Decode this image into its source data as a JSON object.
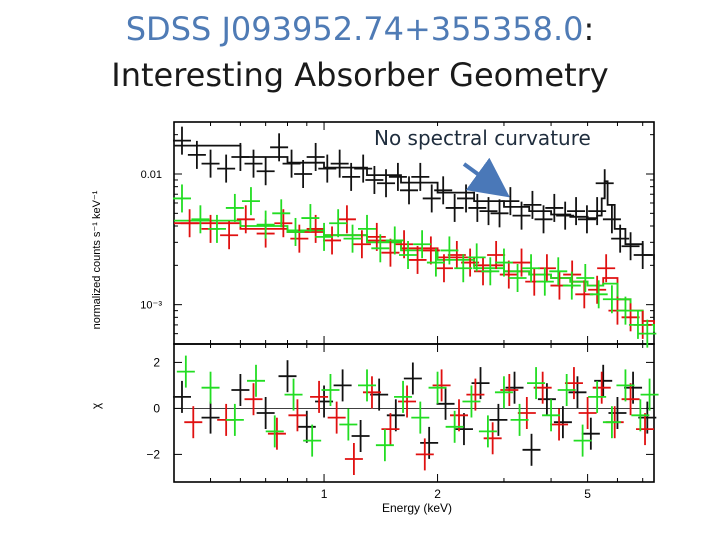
{
  "slide": {
    "title_object": "SDSS J093952.74+355358.0",
    "title_colon": ":",
    "title_line2": "Interesting Absorber Geometry",
    "annotation": "No spectral curvature"
  },
  "colors": {
    "accent": "#4f7bb5",
    "series_black": "#111111",
    "series_red": "#e01010",
    "series_green": "#22dd22",
    "arrow": "#4a78b8"
  },
  "chart_data": [
    {
      "type": "scatter",
      "panel": "spectrum",
      "xlabel": "Energy (keV)",
      "ylabel": "normalized counts s⁻¹ keV⁻¹",
      "x_scale": "log",
      "y_scale": "log",
      "xlim": [
        0.4,
        7.5
      ],
      "ylim": [
        0.0005,
        0.025
      ],
      "yticks": [
        {
          "value": 0.01,
          "label": "0.01"
        },
        {
          "value": 0.001,
          "label": "10⁻³"
        }
      ],
      "series": [
        {
          "color": "black",
          "points": [
            [
              0.42,
              0.018
            ],
            [
              0.46,
              0.014
            ],
            [
              0.5,
              0.012
            ],
            [
              0.55,
              0.011
            ],
            [
              0.6,
              0.0135
            ],
            [
              0.65,
              0.012
            ],
            [
              0.7,
              0.0105
            ],
            [
              0.76,
              0.016
            ],
            [
              0.82,
              0.012
            ],
            [
              0.88,
              0.01
            ],
            [
              0.95,
              0.0135
            ],
            [
              1.02,
              0.011
            ],
            [
              1.1,
              0.012
            ],
            [
              1.18,
              0.0095
            ],
            [
              1.27,
              0.011
            ],
            [
              1.36,
              0.009
            ],
            [
              1.46,
              0.0085
            ],
            [
              1.57,
              0.0095
            ],
            [
              1.68,
              0.0075
            ],
            [
              1.8,
              0.0095
            ],
            [
              1.93,
              0.0065
            ],
            [
              2.07,
              0.0075
            ],
            [
              2.22,
              0.0055
            ],
            [
              2.38,
              0.0065
            ],
            [
              2.55,
              0.0055
            ],
            [
              2.73,
              0.0052
            ],
            [
              2.92,
              0.005
            ],
            [
              3.12,
              0.0062
            ],
            [
              3.34,
              0.0048
            ],
            [
              3.57,
              0.0058
            ],
            [
              3.82,
              0.0045
            ],
            [
              4.08,
              0.0055
            ],
            [
              4.36,
              0.0048
            ],
            [
              4.66,
              0.0052
            ],
            [
              4.98,
              0.0045
            ],
            [
              5.3,
              0.0052
            ],
            [
              5.55,
              0.0085
            ],
            [
              5.8,
              0.0045
            ],
            [
              6.1,
              0.0032
            ],
            [
              6.5,
              0.0028
            ],
            [
              7.0,
              0.0024
            ]
          ],
          "model": [
            [
              0.4,
              0.0165
            ],
            [
              0.6,
              0.0135
            ],
            [
              0.8,
              0.0122
            ],
            [
              1.0,
              0.0112
            ],
            [
              1.3,
              0.0098
            ],
            [
              1.6,
              0.0086
            ],
            [
              2.0,
              0.0072
            ],
            [
              2.5,
              0.0062
            ],
            [
              3.0,
              0.0056
            ],
            [
              3.5,
              0.0052
            ],
            [
              4.0,
              0.0049
            ],
            [
              4.5,
              0.0047
            ],
            [
              5.0,
              0.0046
            ],
            [
              5.3,
              0.0048
            ],
            [
              5.45,
              0.0065
            ],
            [
              5.55,
              0.0088
            ],
            [
              5.65,
              0.0058
            ],
            [
              5.9,
              0.0038
            ],
            [
              6.3,
              0.0029
            ],
            [
              7.0,
              0.0024
            ],
            [
              7.5,
              0.0022
            ]
          ]
        },
        {
          "color": "red",
          "points": [
            [
              0.44,
              0.0042
            ],
            [
              0.5,
              0.0038
            ],
            [
              0.56,
              0.0034
            ],
            [
              0.62,
              0.0045
            ],
            [
              0.7,
              0.0035
            ],
            [
              0.78,
              0.0042
            ],
            [
              0.86,
              0.0032
            ],
            [
              0.95,
              0.0038
            ],
            [
              1.05,
              0.0031
            ],
            [
              1.15,
              0.0045
            ],
            [
              1.26,
              0.0029
            ],
            [
              1.38,
              0.0033
            ],
            [
              1.5,
              0.0025
            ],
            [
              1.63,
              0.0029
            ],
            [
              1.77,
              0.0022
            ],
            [
              1.92,
              0.0026
            ],
            [
              2.08,
              0.0019
            ],
            [
              2.25,
              0.0024
            ],
            [
              2.44,
              0.0021
            ],
            [
              2.64,
              0.0018
            ],
            [
              2.86,
              0.0024
            ],
            [
              3.09,
              0.0017
            ],
            [
              3.34,
              0.0021
            ],
            [
              3.61,
              0.0015
            ],
            [
              3.9,
              0.0019
            ],
            [
              4.21,
              0.0014
            ],
            [
              4.55,
              0.0017
            ],
            [
              4.9,
              0.0012
            ],
            [
              5.3,
              0.0013
            ],
            [
              5.6,
              0.0019
            ],
            [
              6.0,
              0.0009
            ],
            [
              6.5,
              0.0008
            ],
            [
              7.0,
              0.0007
            ]
          ],
          "model": [
            [
              0.4,
              0.0042
            ],
            [
              0.6,
              0.0038
            ],
            [
              0.8,
              0.0036
            ],
            [
              1.0,
              0.0034
            ],
            [
              1.3,
              0.0031
            ],
            [
              1.6,
              0.0027
            ],
            [
              2.0,
              0.0023
            ],
            [
              2.5,
              0.002
            ],
            [
              3.0,
              0.0018
            ],
            [
              3.5,
              0.0017
            ],
            [
              4.0,
              0.0016
            ],
            [
              4.5,
              0.0015
            ],
            [
              5.0,
              0.0014
            ],
            [
              5.5,
              0.0016
            ],
            [
              6.0,
              0.0011
            ],
            [
              6.5,
              0.0009
            ],
            [
              7.0,
              0.00075
            ],
            [
              7.5,
              0.0007
            ]
          ]
        },
        {
          "color": "green",
          "points": [
            [
              0.42,
              0.0065
            ],
            [
              0.47,
              0.0045
            ],
            [
              0.52,
              0.0038
            ],
            [
              0.58,
              0.0055
            ],
            [
              0.64,
              0.0062
            ],
            [
              0.7,
              0.0041
            ],
            [
              0.77,
              0.005
            ],
            [
              0.84,
              0.0036
            ],
            [
              0.92,
              0.0046
            ],
            [
              1.0,
              0.0033
            ],
            [
              1.09,
              0.0042
            ],
            [
              1.19,
              0.0032
            ],
            [
              1.3,
              0.0038
            ],
            [
              1.41,
              0.0027
            ],
            [
              1.54,
              0.0031
            ],
            [
              1.67,
              0.0024
            ],
            [
              1.82,
              0.0029
            ],
            [
              1.98,
              0.0021
            ],
            [
              2.15,
              0.0026
            ],
            [
              2.34,
              0.0019
            ],
            [
              2.54,
              0.0023
            ],
            [
              2.76,
              0.0018
            ],
            [
              3.0,
              0.0021
            ],
            [
              3.26,
              0.0016
            ],
            [
              3.54,
              0.0019
            ],
            [
              3.85,
              0.0015
            ],
            [
              4.18,
              0.0018
            ],
            [
              4.54,
              0.0014
            ],
            [
              4.93,
              0.0016
            ],
            [
              5.35,
              0.0012
            ],
            [
              5.8,
              0.0011
            ],
            [
              6.3,
              0.0009
            ],
            [
              6.8,
              0.0007
            ],
            [
              7.2,
              0.0006
            ]
          ],
          "model": [
            [
              0.4,
              0.0044
            ],
            [
              0.6,
              0.004
            ],
            [
              0.8,
              0.0037
            ],
            [
              1.0,
              0.0034
            ],
            [
              1.3,
              0.003
            ],
            [
              1.6,
              0.0026
            ],
            [
              2.0,
              0.0022
            ],
            [
              2.5,
              0.0019
            ],
            [
              3.0,
              0.0018
            ],
            [
              3.5,
              0.0017
            ],
            [
              4.0,
              0.0016
            ],
            [
              4.5,
              0.0015
            ],
            [
              5.0,
              0.0014
            ],
            [
              5.5,
              0.00145
            ],
            [
              6.0,
              0.0011
            ],
            [
              6.5,
              0.0009
            ],
            [
              7.0,
              0.0007
            ],
            [
              7.5,
              0.00062
            ]
          ]
        }
      ]
    },
    {
      "type": "scatter",
      "panel": "residuals",
      "xlabel": "Energy (keV)",
      "ylabel": "χ",
      "x_scale": "log",
      "xlim": [
        0.4,
        7.5
      ],
      "ylim": [
        -3.2,
        2.8
      ],
      "xticks": [
        {
          "value": 1,
          "label": "1"
        },
        {
          "value": 2,
          "label": "2"
        },
        {
          "value": 5,
          "label": "5"
        }
      ],
      "yticks": [
        {
          "value": 2,
          "label": "2"
        },
        {
          "value": 0,
          "label": "0"
        },
        {
          "value": -2,
          "label": "−2"
        }
      ],
      "series": [
        {
          "color": "black",
          "points": [
            [
              0.42,
              0.5
            ],
            [
              0.5,
              -0.4
            ],
            [
              0.6,
              0.8
            ],
            [
              0.7,
              -0.2
            ],
            [
              0.8,
              1.4
            ],
            [
              0.9,
              -0.8
            ],
            [
              1.0,
              0.3
            ],
            [
              1.12,
              1.0
            ],
            [
              1.25,
              -1.2
            ],
            [
              1.4,
              0.6
            ],
            [
              1.55,
              -0.3
            ],
            [
              1.72,
              1.3
            ],
            [
              1.9,
              -1.5
            ],
            [
              2.1,
              0.2
            ],
            [
              2.35,
              -0.9
            ],
            [
              2.6,
              1.1
            ],
            [
              2.9,
              -0.5
            ],
            [
              3.2,
              0.9
            ],
            [
              3.55,
              -1.8
            ],
            [
              3.9,
              0.4
            ],
            [
              4.3,
              -0.6
            ],
            [
              4.7,
              0.7
            ],
            [
              5.1,
              -1.1
            ],
            [
              5.5,
              1.2
            ],
            [
              6.0,
              -0.2
            ],
            [
              6.6,
              0.9
            ],
            [
              7.2,
              -0.4
            ]
          ]
        },
        {
          "color": "red",
          "points": [
            [
              0.45,
              -0.6
            ],
            [
              0.55,
              -0.5
            ],
            [
              0.65,
              0.4
            ],
            [
              0.75,
              -1.1
            ],
            [
              0.85,
              -0.3
            ],
            [
              0.97,
              0.5
            ],
            [
              1.08,
              -0.4
            ],
            [
              1.2,
              -2.2
            ],
            [
              1.34,
              0.7
            ],
            [
              1.5,
              -0.9
            ],
            [
              1.66,
              0.3
            ],
            [
              1.85,
              -2.0
            ],
            [
              2.05,
              1.0
            ],
            [
              2.28,
              -0.3
            ],
            [
              2.52,
              0.6
            ],
            [
              2.8,
              -1.3
            ],
            [
              3.1,
              0.8
            ],
            [
              3.45,
              -0.2
            ],
            [
              3.8,
              0.9
            ],
            [
              4.2,
              -0.7
            ],
            [
              4.6,
              1.1
            ],
            [
              5.0,
              -0.2
            ],
            [
              5.45,
              0.9
            ],
            [
              5.9,
              -0.6
            ],
            [
              6.5,
              0.4
            ],
            [
              7.1,
              -0.9
            ]
          ]
        },
        {
          "color": "green",
          "points": [
            [
              0.43,
              1.6
            ],
            [
              0.5,
              0.9
            ],
            [
              0.58,
              -0.5
            ],
            [
              0.66,
              1.2
            ],
            [
              0.74,
              -1.0
            ],
            [
              0.83,
              0.6
            ],
            [
              0.93,
              -1.4
            ],
            [
              1.04,
              0.8
            ],
            [
              1.16,
              -0.7
            ],
            [
              1.3,
              1.0
            ],
            [
              1.45,
              -1.6
            ],
            [
              1.62,
              0.5
            ],
            [
              1.8,
              -0.4
            ],
            [
              2.0,
              0.9
            ],
            [
              2.22,
              -0.8
            ],
            [
              2.46,
              0.3
            ],
            [
              2.72,
              -1.0
            ],
            [
              3.0,
              0.7
            ],
            [
              3.3,
              -0.5
            ],
            [
              3.65,
              1.1
            ],
            [
              4.0,
              -0.3
            ],
            [
              4.4,
              0.8
            ],
            [
              4.85,
              -1.4
            ],
            [
              5.3,
              0.5
            ],
            [
              5.8,
              -0.6
            ],
            [
              6.3,
              1.0
            ],
            [
              6.9,
              -0.3
            ],
            [
              7.3,
              0.6
            ]
          ]
        }
      ]
    }
  ]
}
